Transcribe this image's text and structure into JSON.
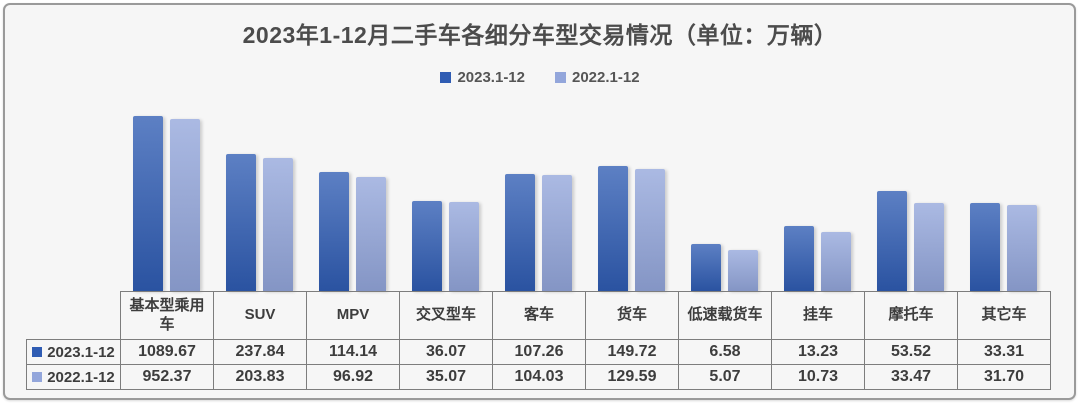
{
  "chart_data": {
    "type": "bar",
    "title": "2023年1-12月二手车各细分车型交易情况（单位：万辆）",
    "y_scale": "log",
    "grid": false,
    "legend_position": "top",
    "xlabel": "",
    "ylabel": "",
    "categories": [
      "基本型乘用车",
      "SUV",
      "MPV",
      "交叉型车",
      "客车",
      "货车",
      "低速载货车",
      "挂车",
      "摩托车",
      "其它车"
    ],
    "series": [
      {
        "name": "2023.1-12",
        "color": "#2f5cb3",
        "values": [
          1089.67,
          237.84,
          114.14,
          36.07,
          107.26,
          149.72,
          6.58,
          13.23,
          53.52,
          33.31
        ]
      },
      {
        "name": "2022.1-12",
        "color": "#93a6db",
        "values": [
          952.37,
          203.83,
          96.92,
          35.07,
          104.03,
          129.59,
          5.07,
          10.73,
          33.47,
          31.7
        ]
      }
    ]
  },
  "table": {
    "columns": [
      "基本型乘用车",
      "SUV",
      "MPV",
      "交叉型车",
      "客车",
      "货车",
      "低速载货车",
      "挂车",
      "摩托车",
      "其它车"
    ],
    "rows": [
      {
        "label": "2023.1-12",
        "marker_color": "#2f5cb3",
        "values": [
          "1089.67",
          "237.84",
          "114.14",
          "36.07",
          "107.26",
          "149.72",
          "6.58",
          "13.23",
          "53.52",
          "33.31"
        ]
      },
      {
        "label": "2022.1-12",
        "marker_color": "#93a6db",
        "values": [
          "952.37",
          "203.83",
          "96.92",
          "35.07",
          "104.03",
          "129.59",
          "5.07",
          "10.73",
          "33.47",
          "31.70"
        ]
      }
    ]
  }
}
